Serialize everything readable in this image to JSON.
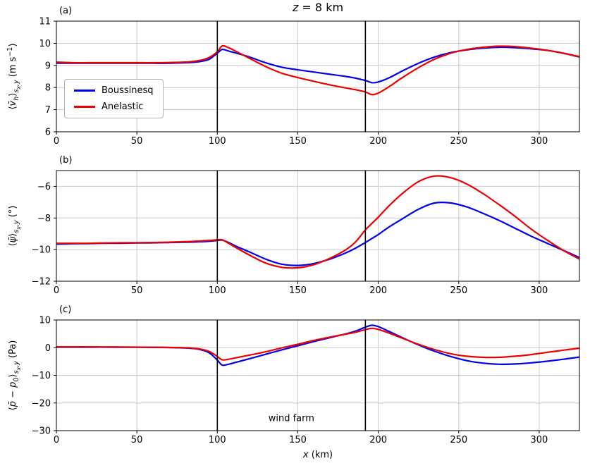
{
  "title": {
    "italic_part": "z",
    "text_part": " = 8 km"
  },
  "xlabel": {
    "italic_part": "x",
    "text_part": " (km)"
  },
  "colors": {
    "boussinesq": "#0000ee",
    "anelastic": "#ee0000",
    "grid": "#cccccc",
    "axis": "#000000",
    "vline": "#000000",
    "background": "#ffffff"
  },
  "chart_data": {
    "type": "line",
    "title": "z = 8 km",
    "legend": {
      "position": "upper-left-panel-a",
      "entries": [
        "Boussinesq",
        "Anelastic"
      ]
    },
    "x_axis": {
      "label": "x (km)",
      "lim": [
        0,
        325
      ],
      "ticks": [
        0,
        50,
        100,
        150,
        200,
        250,
        300
      ]
    },
    "vlines": [
      100,
      192
    ],
    "x": [
      0,
      10,
      20,
      30,
      40,
      50,
      60,
      70,
      80,
      85,
      90,
      95,
      100,
      103,
      107,
      112,
      120,
      130,
      140,
      150,
      160,
      170,
      180,
      186,
      192,
      196,
      200,
      207,
      215,
      225,
      235,
      245,
      255,
      265,
      275,
      285,
      295,
      305,
      315,
      325
    ],
    "panels": [
      {
        "id": "a",
        "tag": "(a)",
        "ylabel": "⟨v̄h⟩sx,y (m s⁻¹)",
        "ylabel_segments": [
          {
            "t": "⟨"
          },
          {
            "t": "v̄",
            "i": 1
          },
          {
            "t": "h",
            "i": 1,
            "pos": "sub"
          },
          {
            "t": "⟩"
          },
          {
            "t": "s",
            "i": 1,
            "pos": "sub"
          },
          {
            "t": "x",
            "i": 1,
            "pos": "subsub"
          },
          {
            "t": ",y",
            "i": 1,
            "pos": "sub"
          },
          {
            "t": " (m s"
          },
          {
            "t": "−1",
            "pos": "sup"
          },
          {
            "t": ")"
          }
        ],
        "ylim": [
          6,
          11
        ],
        "yticks": [
          6,
          7,
          8,
          9,
          10,
          11
        ],
        "series": [
          {
            "name": "Boussinesq",
            "color": "#0000ee",
            "y": [
              9.1,
              9.1,
              9.1,
              9.1,
              9.1,
              9.1,
              9.1,
              9.1,
              9.12,
              9.14,
              9.18,
              9.28,
              9.55,
              9.72,
              9.65,
              9.55,
              9.38,
              9.12,
              8.92,
              8.8,
              8.7,
              8.6,
              8.5,
              8.42,
              8.32,
              8.22,
              8.25,
              8.45,
              8.75,
              9.1,
              9.38,
              9.58,
              9.7,
              9.78,
              9.82,
              9.8,
              9.75,
              9.68,
              9.55,
              9.38
            ]
          },
          {
            "name": "Anelastic",
            "color": "#ee0000",
            "y": [
              9.15,
              9.12,
              9.12,
              9.12,
              9.12,
              9.12,
              9.12,
              9.13,
              9.15,
              9.18,
              9.24,
              9.36,
              9.62,
              9.88,
              9.8,
              9.62,
              9.32,
              8.95,
              8.65,
              8.45,
              8.28,
              8.12,
              7.98,
              7.9,
              7.8,
              7.68,
              7.75,
              8.05,
              8.45,
              8.9,
              9.28,
              9.55,
              9.72,
              9.82,
              9.87,
              9.85,
              9.78,
              9.68,
              9.55,
              9.4
            ]
          }
        ]
      },
      {
        "id": "b",
        "tag": "(b)",
        "ylabel": "⟨ψ̄⟩sx,y (°)",
        "ylabel_segments": [
          {
            "t": "⟨"
          },
          {
            "t": "ψ̄",
            "i": 1
          },
          {
            "t": "⟩"
          },
          {
            "t": "s",
            "i": 1,
            "pos": "sub"
          },
          {
            "t": "x",
            "i": 1,
            "pos": "subsub"
          },
          {
            "t": ",y",
            "i": 1,
            "pos": "sub"
          },
          {
            "t": " (°)"
          }
        ],
        "ylim": [
          -12,
          -5
        ],
        "yticks": [
          -12,
          -10,
          -8,
          -6
        ],
        "series": [
          {
            "name": "Boussinesq",
            "color": "#0000ee",
            "y": [
              -9.65,
              -9.63,
              -9.62,
              -9.6,
              -9.6,
              -9.58,
              -9.57,
              -9.55,
              -9.53,
              -9.52,
              -9.5,
              -9.47,
              -9.42,
              -9.4,
              -9.55,
              -9.8,
              -10.15,
              -10.6,
              -10.92,
              -11.0,
              -10.88,
              -10.6,
              -10.2,
              -9.9,
              -9.55,
              -9.3,
              -9.05,
              -8.55,
              -8.05,
              -7.45,
              -7.05,
              -7.05,
              -7.3,
              -7.7,
              -8.15,
              -8.65,
              -9.15,
              -9.6,
              -10.05,
              -10.5
            ]
          },
          {
            "name": "Anelastic",
            "color": "#ee0000",
            "y": [
              -9.6,
              -9.6,
              -9.6,
              -9.58,
              -9.57,
              -9.56,
              -9.55,
              -9.53,
              -9.5,
              -9.48,
              -9.45,
              -9.42,
              -9.38,
              -9.38,
              -9.6,
              -9.9,
              -10.35,
              -10.85,
              -11.12,
              -11.15,
              -10.95,
              -10.55,
              -10.0,
              -9.5,
              -8.75,
              -8.35,
              -7.95,
              -7.2,
              -6.45,
              -5.7,
              -5.35,
              -5.45,
              -5.85,
              -6.45,
              -7.15,
              -7.9,
              -8.7,
              -9.4,
              -10.05,
              -10.6
            ]
          }
        ]
      },
      {
        "id": "c",
        "tag": "(c)",
        "ylabel": "⟨p̄ − p0⟩sx,y (Pa)",
        "ylabel_segments": [
          {
            "t": "⟨"
          },
          {
            "t": "p̄",
            "i": 1
          },
          {
            "t": " − "
          },
          {
            "t": "p",
            "i": 1
          },
          {
            "t": "0",
            "pos": "sub"
          },
          {
            "t": "⟩"
          },
          {
            "t": "s",
            "i": 1,
            "pos": "sub"
          },
          {
            "t": "x",
            "i": 1,
            "pos": "subsub"
          },
          {
            "t": ",y",
            "i": 1,
            "pos": "sub"
          },
          {
            "t": " (Pa)"
          }
        ],
        "ylim": [
          -30,
          10
        ],
        "yticks": [
          -30,
          -20,
          -10,
          0,
          10
        ],
        "annotation": {
          "text": "wind farm",
          "x": 146,
          "y": -26.5
        },
        "series": [
          {
            "name": "Boussinesq",
            "color": "#0000ee",
            "y": [
              0.2,
              0.2,
              0.2,
              0.2,
              0.15,
              0.15,
              0.1,
              0.05,
              -0.1,
              -0.3,
              -0.8,
              -1.9,
              -4.5,
              -6.3,
              -6.0,
              -5.2,
              -4.0,
              -2.4,
              -0.8,
              0.7,
              2.2,
              3.6,
              5.0,
              6.0,
              7.4,
              8.1,
              7.6,
              5.8,
              3.6,
              1.0,
              -1.3,
              -3.2,
              -4.7,
              -5.6,
              -6.0,
              -5.9,
              -5.5,
              -4.9,
              -4.2,
              -3.4
            ]
          },
          {
            "name": "Anelastic",
            "color": "#ee0000",
            "y": [
              0.3,
              0.3,
              0.3,
              0.25,
              0.25,
              0.2,
              0.15,
              0.1,
              0.0,
              -0.2,
              -0.6,
              -1.4,
              -3.2,
              -4.4,
              -4.2,
              -3.6,
              -2.7,
              -1.5,
              -0.1,
              1.2,
              2.6,
              3.8,
              4.9,
              5.6,
              6.5,
              7.0,
              6.6,
              5.2,
              3.4,
              1.2,
              -0.7,
              -2.2,
              -3.1,
              -3.5,
              -3.5,
              -3.1,
              -2.5,
              -1.7,
              -0.9,
              -0.2
            ]
          }
        ]
      }
    ]
  }
}
